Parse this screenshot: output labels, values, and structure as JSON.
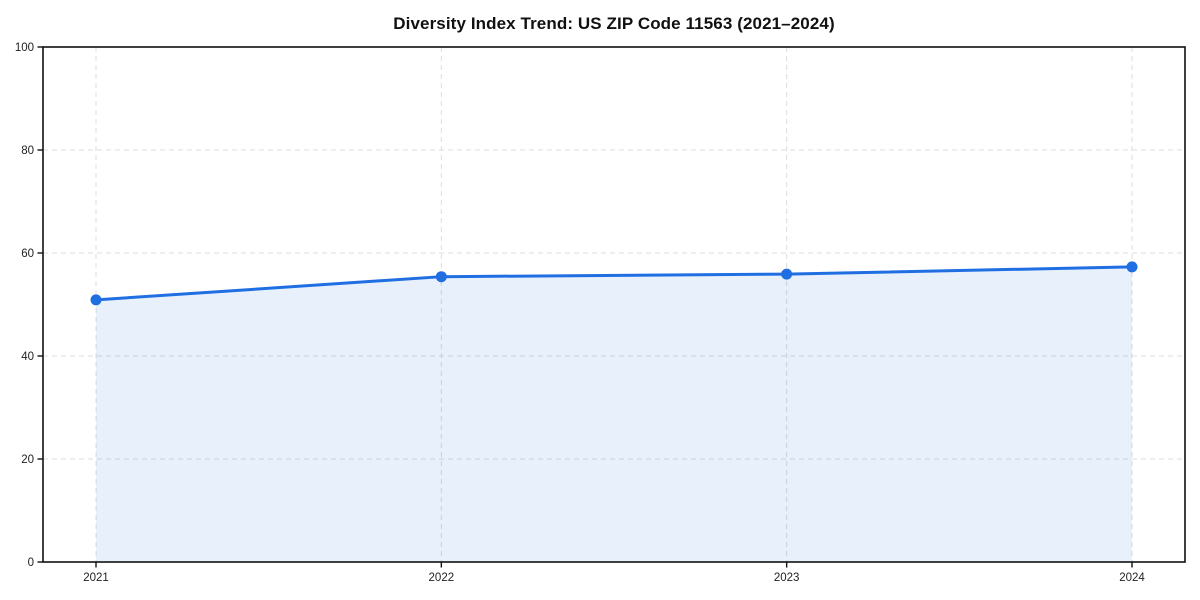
{
  "chart_data": {
    "type": "area",
    "title": "Diversity Index Trend: US ZIP Code 11563 (2021–2024)",
    "categories": [
      "2021",
      "2022",
      "2023",
      "2024"
    ],
    "values": [
      50.9,
      55.4,
      55.9,
      57.3
    ],
    "xlabel": "",
    "ylabel": "",
    "ylim": [
      0,
      100
    ],
    "yticks": [
      0,
      20,
      40,
      60,
      80,
      100
    ],
    "grid": "dashed-both-axes",
    "legend": "none",
    "marker": "circle",
    "colors": {
      "line": "#1f6fe3",
      "marker": "#1f6fe3",
      "fill": "rgba(31, 111, 227, 0.10)",
      "grid": "#dcdcdc",
      "axis": "#111111",
      "title_text": "#111111",
      "tick_text": "#222222",
      "background": "#ffffff"
    }
  }
}
